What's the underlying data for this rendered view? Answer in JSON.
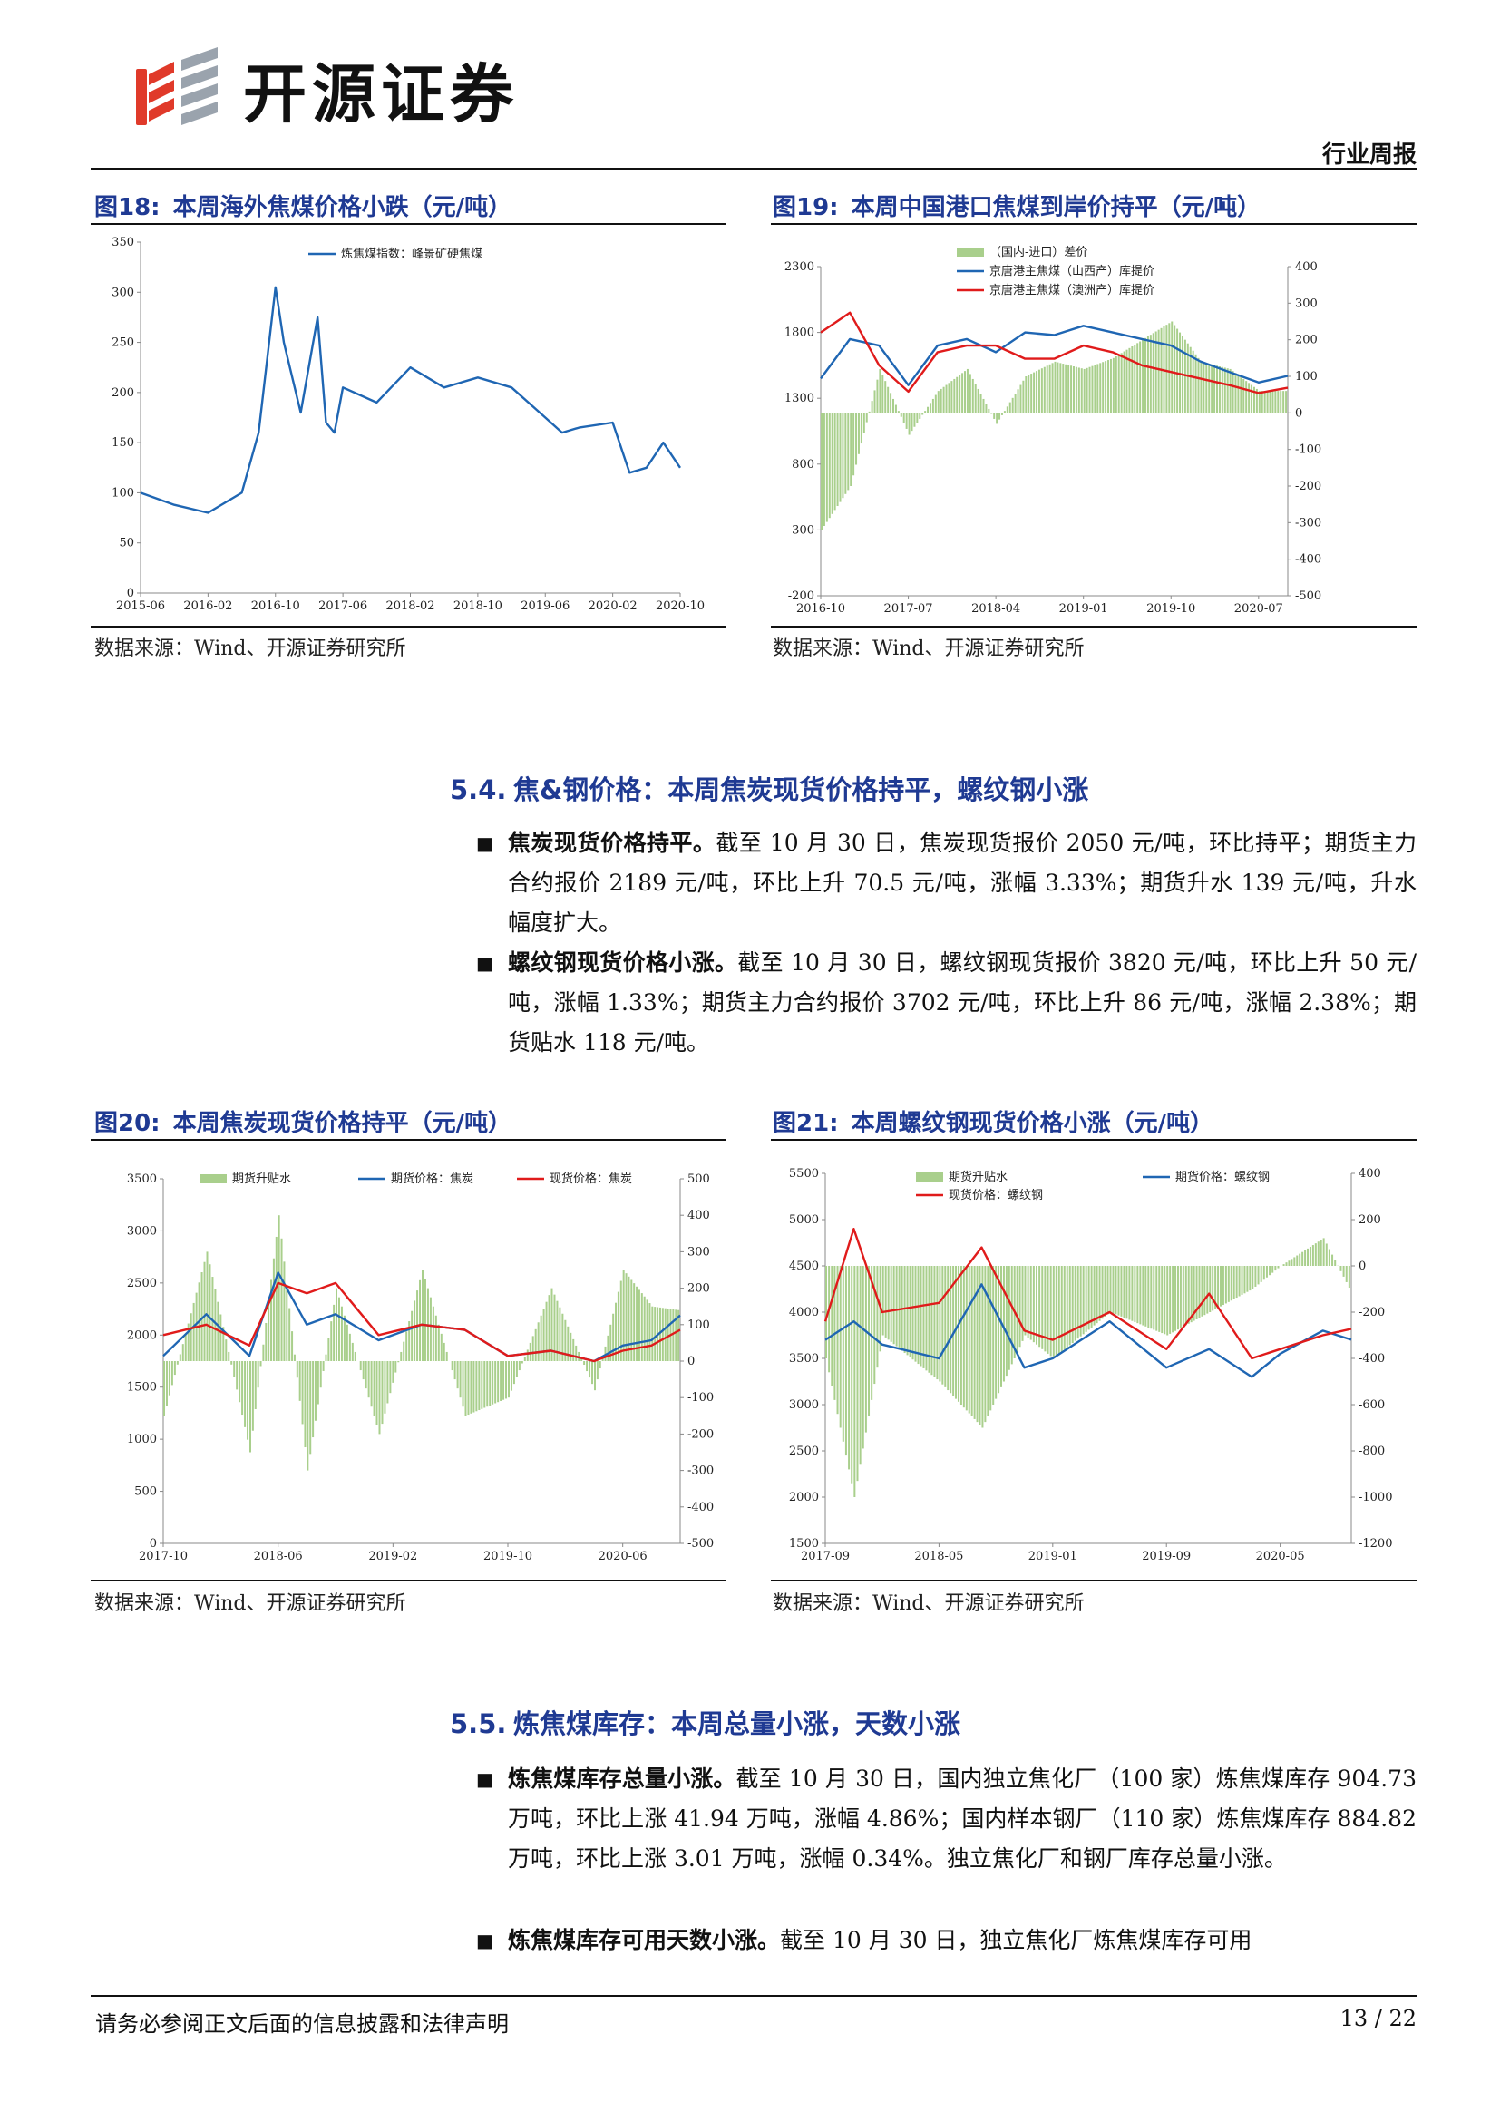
{
  "header": {
    "brand": "开源证券",
    "doc_type": "行业周报"
  },
  "figures": {
    "fig18": {
      "num": "图18:",
      "title": "本周海外焦煤价格小跌（元/吨）",
      "source": "数据来源：Wind、开源证券研究所",
      "chart_data": {
        "type": "line",
        "series": [
          {
            "name": "炼焦煤指数：峰景矿硬焦煤",
            "x": [
              "2015-06",
              "2015-10",
              "2016-02",
              "2016-06",
              "2016-08",
              "2016-10",
              "2016-11",
              "2017-01",
              "2017-03",
              "2017-04",
              "2017-05",
              "2017-06",
              "2017-10",
              "2018-02",
              "2018-06",
              "2018-10",
              "2019-02",
              "2019-06",
              "2019-08",
              "2019-10",
              "2020-02",
              "2020-04",
              "2020-06",
              "2020-08",
              "2020-10"
            ],
            "values": [
              100,
              88,
              80,
              100,
              160,
              305,
              250,
              180,
              275,
              170,
              160,
              205,
              190,
              225,
              205,
              215,
              205,
              175,
              160,
              165,
              170,
              120,
              125,
              150,
              125
            ],
            "color": "#1f66b3"
          }
        ],
        "x_ticks": [
          "2015-06",
          "2016-02",
          "2016-10",
          "2017-06",
          "2018-02",
          "2018-10",
          "2019-06",
          "2020-02",
          "2020-10"
        ],
        "y_ticks": [
          "0",
          "50",
          "100",
          "150",
          "200",
          "250",
          "300",
          "350"
        ],
        "ylim": [
          0,
          350
        ],
        "legend": "top"
      }
    },
    "fig19": {
      "num": "图19:",
      "title": "本周中国港口焦煤到岸价持平（元/吨）",
      "source": "数据来源：Wind、开源证券研究所",
      "chart_data": {
        "type": "line",
        "legend": [
          "（国内-进口）差价",
          "京唐港主焦煤（山西产）库提价",
          "京唐港主焦煤（澳洲产）库提价"
        ],
        "series": [
          {
            "name": "（国内-进口）差价",
            "type": "bar",
            "axis": "right",
            "color": "#a9cf8c",
            "x": [
              "2016-10",
              "2017-01",
              "2017-04",
              "2017-07",
              "2017-10",
              "2018-01",
              "2018-04",
              "2018-07",
              "2018-10",
              "2019-01",
              "2019-04",
              "2019-07",
              "2019-10",
              "2020-01",
              "2020-04",
              "2020-07",
              "2020-10"
            ],
            "values": [
              -320,
              -200,
              120,
              -60,
              60,
              120,
              -30,
              100,
              140,
              120,
              150,
              200,
              250,
              140,
              120,
              60,
              60
            ]
          },
          {
            "name": "京唐港主焦煤（山西产）库提价",
            "axis": "left",
            "color": "#1f66b3",
            "x": [
              "2016-10",
              "2017-01",
              "2017-04",
              "2017-07",
              "2017-10",
              "2018-01",
              "2018-04",
              "2018-07",
              "2018-10",
              "2019-01",
              "2019-04",
              "2019-07",
              "2019-10",
              "2020-01",
              "2020-04",
              "2020-07",
              "2020-10"
            ],
            "values": [
              1450,
              1750,
              1700,
              1400,
              1700,
              1750,
              1650,
              1800,
              1780,
              1850,
              1800,
              1750,
              1700,
              1580,
              1500,
              1420,
              1470
            ]
          },
          {
            "name": "京唐港主焦煤（澳洲产）库提价",
            "axis": "left",
            "color": "#e01b1b",
            "x": [
              "2016-10",
              "2017-01",
              "2017-04",
              "2017-07",
              "2017-10",
              "2018-01",
              "2018-04",
              "2018-07",
              "2018-10",
              "2019-01",
              "2019-04",
              "2019-07",
              "2019-10",
              "2020-01",
              "2020-04",
              "2020-07",
              "2020-10"
            ],
            "values": [
              1800,
              1950,
              1550,
              1350,
              1650,
              1700,
              1700,
              1600,
              1600,
              1700,
              1650,
              1550,
              1500,
              1450,
              1400,
              1340,
              1380
            ]
          }
        ],
        "x_ticks": [
          "2016-10",
          "2017-07",
          "2018-04",
          "2019-01",
          "2019-10",
          "2020-07"
        ],
        "y_left_ticks": [
          "-200",
          "300",
          "800",
          "1300",
          "1800",
          "2300"
        ],
        "y_right_ticks": [
          "400",
          "300",
          "200",
          "100",
          "0",
          "-100",
          "-200",
          "-300",
          "-400",
          "-500"
        ],
        "ylim_left": [
          -200,
          2300
        ],
        "ylim_right": [
          -500,
          400
        ]
      }
    },
    "fig20": {
      "num": "图20:",
      "title": "本周焦炭现货价格持平（元/吨）",
      "source": "数据来源：Wind、开源证券研究所",
      "chart_data": {
        "type": "line",
        "legend": [
          "期货升贴水",
          "期货价格：焦炭",
          "现货价格：焦炭"
        ],
        "series": [
          {
            "name": "期货升贴水",
            "type": "bar",
            "axis": "right",
            "color": "#a9cf8c",
            "x": [
              "2017-10",
              "2018-01",
              "2018-04",
              "2018-06",
              "2018-08",
              "2018-10",
              "2019-01",
              "2019-04",
              "2019-07",
              "2019-10",
              "2020-01",
              "2020-04",
              "2020-06",
              "2020-08",
              "2020-10"
            ],
            "values": [
              -150,
              300,
              -250,
              400,
              -300,
              200,
              -200,
              250,
              -150,
              -100,
              200,
              -80,
              250,
              150,
              139
            ]
          },
          {
            "name": "期货价格：焦炭",
            "axis": "left",
            "color": "#1f66b3",
            "x": [
              "2017-10",
              "2018-01",
              "2018-04",
              "2018-06",
              "2018-08",
              "2018-10",
              "2019-01",
              "2019-04",
              "2019-07",
              "2019-10",
              "2020-01",
              "2020-04",
              "2020-06",
              "2020-08",
              "2020-10"
            ],
            "values": [
              1800,
              2200,
              1800,
              2600,
              2100,
              2200,
              1950,
              2100,
              2050,
              1800,
              1850,
              1750,
              1900,
              1950,
              2189
            ]
          },
          {
            "name": "现货价格：焦炭",
            "axis": "left",
            "color": "#e01b1b",
            "x": [
              "2017-10",
              "2018-01",
              "2018-04",
              "2018-06",
              "2018-08",
              "2018-10",
              "2019-01",
              "2019-04",
              "2019-07",
              "2019-10",
              "2020-01",
              "2020-04",
              "2020-06",
              "2020-08",
              "2020-10"
            ],
            "values": [
              2000,
              2100,
              1900,
              2500,
              2400,
              2500,
              2000,
              2100,
              2050,
              1800,
              1850,
              1750,
              1850,
              1900,
              2050
            ]
          }
        ],
        "x_ticks": [
          "2017-10",
          "2018-06",
          "2019-02",
          "2019-10",
          "2020-06"
        ],
        "y_left_ticks": [
          "0",
          "500",
          "1000",
          "1500",
          "2000",
          "2500",
          "3000",
          "3500"
        ],
        "y_right_ticks": [
          "500",
          "400",
          "300",
          "200",
          "100",
          "0",
          "-100",
          "-200",
          "-300",
          "-400",
          "-500"
        ],
        "ylim_left": [
          0,
          3500
        ],
        "ylim_right": [
          -500,
          500
        ]
      }
    },
    "fig21": {
      "num": "图21:",
      "title": "本周螺纹钢现货价格小涨（元/吨）",
      "source": "数据来源：Wind、开源证券研究所",
      "chart_data": {
        "type": "line",
        "legend": [
          "期货升贴水",
          "期货价格：螺纹钢",
          "现货价格：螺纹钢"
        ],
        "series": [
          {
            "name": "期货升贴水",
            "type": "bar",
            "axis": "right",
            "color": "#a9cf8c",
            "x": [
              "2017-09",
              "2017-11",
              "2018-01",
              "2018-05",
              "2018-08",
              "2018-11",
              "2019-01",
              "2019-05",
              "2019-09",
              "2019-12",
              "2020-03",
              "2020-05",
              "2020-08",
              "2020-10"
            ],
            "values": [
              -400,
              -1000,
              -300,
              -500,
              -700,
              -300,
              -400,
              -200,
              -300,
              -200,
              -100,
              0,
              120,
              -118
            ]
          },
          {
            "name": "期货价格：螺纹钢",
            "axis": "left",
            "color": "#1f66b3",
            "x": [
              "2017-09",
              "2017-11",
              "2018-01",
              "2018-05",
              "2018-08",
              "2018-11",
              "2019-01",
              "2019-05",
              "2019-09",
              "2019-12",
              "2020-03",
              "2020-05",
              "2020-08",
              "2020-10"
            ],
            "values": [
              3700,
              3900,
              3650,
              3500,
              4300,
              3400,
              3500,
              3900,
              3400,
              3600,
              3300,
              3550,
              3800,
              3702
            ]
          },
          {
            "name": "现货价格：螺纹钢",
            "axis": "left",
            "color": "#e01b1b",
            "x": [
              "2017-09",
              "2017-11",
              "2018-01",
              "2018-05",
              "2018-08",
              "2018-11",
              "2019-01",
              "2019-05",
              "2019-09",
              "2019-12",
              "2020-03",
              "2020-05",
              "2020-08",
              "2020-10"
            ],
            "values": [
              3900,
              4900,
              4000,
              4100,
              4700,
              3800,
              3700,
              4000,
              3600,
              4200,
              3500,
              3600,
              3750,
              3820
            ]
          }
        ],
        "x_ticks": [
          "2017-09",
          "2018-05",
          "2019-01",
          "2019-09",
          "2020-05"
        ],
        "y_left_ticks": [
          "1500",
          "2000",
          "2500",
          "3000",
          "3500",
          "4000",
          "4500",
          "5000",
          "5500"
        ],
        "y_right_ticks": [
          "400",
          "200",
          "0",
          "-200",
          "-400",
          "-600",
          "-800",
          "-1000",
          "-1200"
        ],
        "ylim_left": [
          1500,
          5500
        ],
        "ylim_right": [
          -1200,
          400
        ]
      }
    }
  },
  "section54": {
    "num": "5.4.",
    "title": "焦&钢价格：本周焦炭现货价格持平，螺纹钢小涨",
    "bullets": [
      {
        "lead": "焦炭现货价格持平。",
        "text": "截至 10 月 30 日，焦炭现货报价 2050 元/吨，环比持平；期货主力合约报价 2189 元/吨，环比上升 70.5 元/吨，涨幅 3.33%；期货升水 139 元/吨，升水幅度扩大。"
      },
      {
        "lead": "螺纹钢现货价格小涨。",
        "text": "截至 10 月 30 日，螺纹钢现货报价 3820 元/吨，环比上升 50 元/吨，涨幅 1.33%；期货主力合约报价 3702 元/吨，环比上升 86 元/吨，涨幅 2.38%；期货贴水 118 元/吨。"
      }
    ]
  },
  "section55": {
    "num": "5.5.",
    "title": "炼焦煤库存：本周总量小涨，天数小涨",
    "bullets": [
      {
        "lead": "炼焦煤库存总量小涨。",
        "text": "截至 10 月 30 日，国内独立焦化厂（100 家）炼焦煤库存 904.73 万吨，环比上涨 41.94 万吨，涨幅 4.86%；国内样本钢厂（110 家）炼焦煤库存 884.82 万吨，环比上涨 3.01 万吨，涨幅 0.34%。独立焦化厂和钢厂库存总量小涨。"
      },
      {
        "lead": "炼焦煤库存可用天数小涨。",
        "text": "截至 10 月 30 日，独立焦化厂炼焦煤库存可用"
      }
    ]
  },
  "footer": {
    "disclaimer": "请务必参阅正文后面的信息披露和法律声明",
    "page": "13 / 22"
  }
}
